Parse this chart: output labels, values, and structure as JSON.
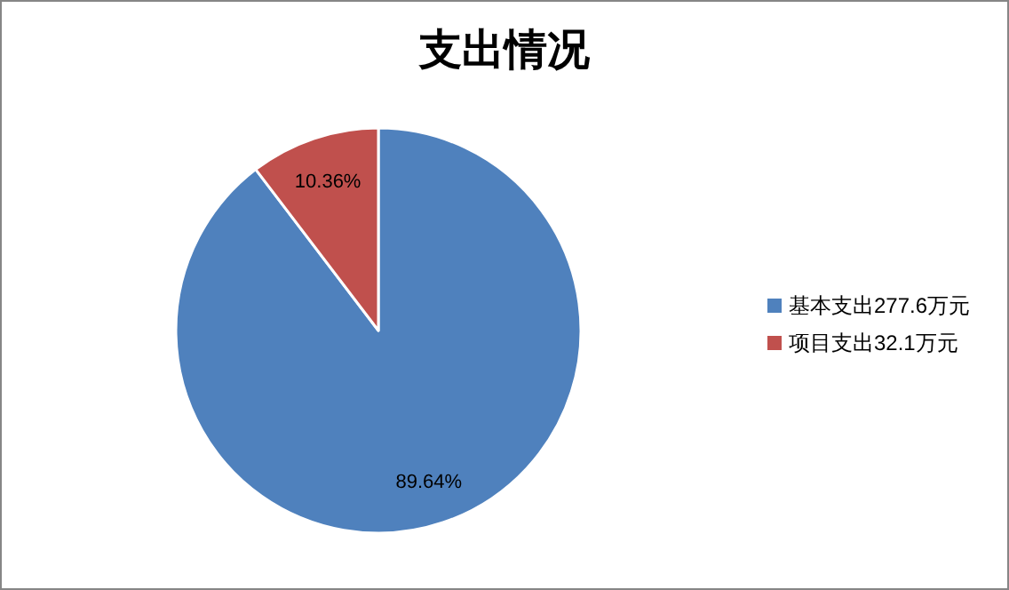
{
  "chart_data": {
    "type": "pie",
    "title": "支出情况",
    "categories": [
      "基本支出277.6万元",
      "项目支出32.1万元"
    ],
    "values": [
      89.64,
      10.36
    ],
    "colors": [
      "#4f81bd",
      "#c0504d"
    ],
    "value_labels": [
      "89.64%",
      "10.36%"
    ],
    "legend": "right"
  }
}
